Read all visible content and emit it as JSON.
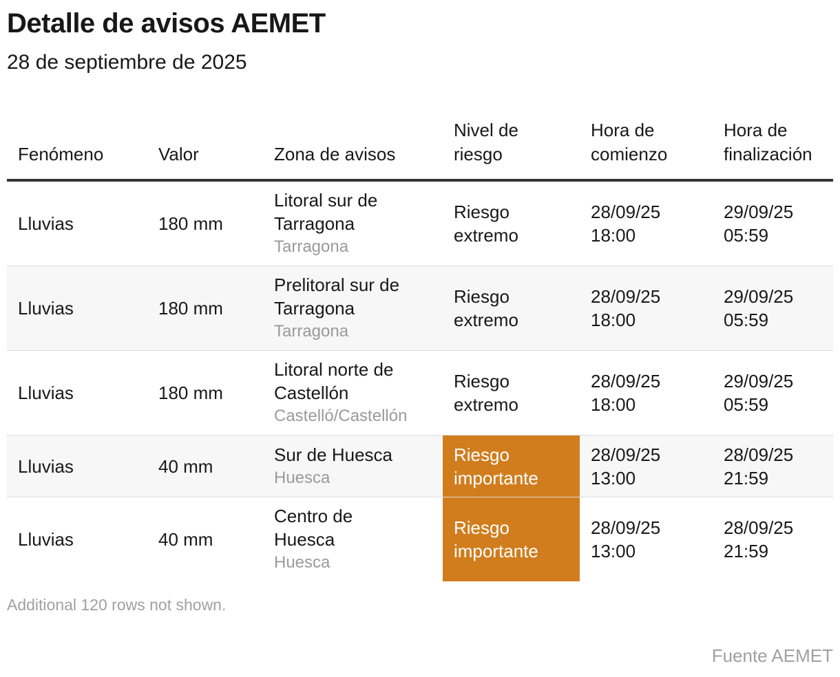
{
  "header": {
    "title": "Detalle de avisos AEMET",
    "subtitle": "28 de septiembre de 2025"
  },
  "table": {
    "columns": [
      {
        "line1": "",
        "line2": "Fenómeno"
      },
      {
        "line1": "",
        "line2": "Valor"
      },
      {
        "line1": "",
        "line2": "Zona de avisos"
      },
      {
        "line1": "Nivel de",
        "line2": "riesgo"
      },
      {
        "line1": "Hora de",
        "line2": "comienzo"
      },
      {
        "line1": "Hora de",
        "line2": "finalización"
      }
    ],
    "rows": [
      {
        "fenomeno": "Lluvias",
        "valor": "180 mm",
        "zona_l1": "Litoral sur de",
        "zona_l2": "Tarragona",
        "provincia": "Tarragona",
        "riesgo_l1": "Riesgo",
        "riesgo_l2": "extremo",
        "inicio_fecha": "28/09/25",
        "inicio_hora": "18:00",
        "fin_fecha": "29/09/25",
        "fin_hora": "05:59"
      },
      {
        "fenomeno": "Lluvias",
        "valor": "180 mm",
        "zona_l1": "Prelitoral sur de",
        "zona_l2": "Tarragona",
        "provincia": "Tarragona",
        "riesgo_l1": "Riesgo",
        "riesgo_l2": "extremo",
        "inicio_fecha": "28/09/25",
        "inicio_hora": "18:00",
        "fin_fecha": "29/09/25",
        "fin_hora": "05:59"
      },
      {
        "fenomeno": "Lluvias",
        "valor": "180 mm",
        "zona_l1": "Litoral norte de",
        "zona_l2": "Castellón",
        "provincia": "Castelló/Castellón",
        "riesgo_l1": "Riesgo",
        "riesgo_l2": "extremo",
        "inicio_fecha": "28/09/25",
        "inicio_hora": "18:00",
        "fin_fecha": "29/09/25",
        "fin_hora": "05:59"
      },
      {
        "fenomeno": "Lluvias",
        "valor": "40 mm",
        "zona_l1": "Sur de Huesca",
        "zona_l2": "",
        "provincia": "Huesca",
        "riesgo_l1": "Riesgo",
        "riesgo_l2": "importante",
        "inicio_fecha": "28/09/25",
        "inicio_hora": "13:00",
        "fin_fecha": "28/09/25",
        "fin_hora": "21:59"
      },
      {
        "fenomeno": "Lluvias",
        "valor": "40 mm",
        "zona_l1": "Centro de",
        "zona_l2": "Huesca",
        "provincia": "Huesca",
        "riesgo_l1": "Riesgo",
        "riesgo_l2": "importante",
        "inicio_fecha": "28/09/25",
        "inicio_hora": "13:00",
        "fin_fecha": "28/09/25",
        "fin_hora": "21:59"
      }
    ]
  },
  "colors": {
    "risk_important_bg": "#d17d1e",
    "province_text": "#9a9a9a",
    "row_alt_bg": "#f7f7f7"
  },
  "footer": {
    "notice": "Additional 120 rows not shown.",
    "source": "Fuente AEMET"
  }
}
